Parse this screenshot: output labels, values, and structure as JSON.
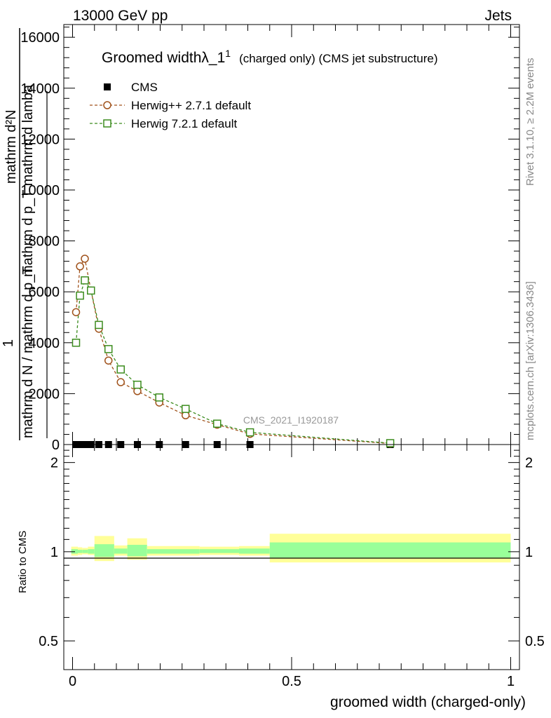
{
  "header": {
    "left": "13000 GeV pp",
    "right": "Jets"
  },
  "side_labels": {
    "top": "Rivet 3.1.10, ≥ 2.2M events",
    "bottom": "mcplots.cern.ch [arXiv:1306.3436]"
  },
  "chart_data": {
    "type": "line",
    "title": "Groomed widthλ_1",
    "title_sup": "1",
    "subtitle": "(charged only) (CMS jet substructure)",
    "watermark": "CMS_2021_I1920187",
    "ylabel_lines": [
      "mathrm d²N",
      "mathrm d p_T mathrm d lamba",
      "1",
      "mathrm d N / mathrm d p_T"
    ],
    "xlabel": "groomed width (charged-only)",
    "ratio_ylabel": "Ratio to CMS",
    "xlim": [
      -0.02,
      1.02
    ],
    "ylim": [
      0,
      16500
    ],
    "ratio_ylim": [
      0.4,
      2.3
    ],
    "yticks": [
      0,
      2000,
      4000,
      6000,
      8000,
      10000,
      12000,
      14000,
      16000
    ],
    "ytick_labels": [
      "0",
      "2000",
      "4000",
      "6000",
      "8000",
      "10000",
      "12000",
      "14000",
      "16000"
    ],
    "xticks": [
      0,
      0.5,
      1
    ],
    "xtick_labels": [
      "0",
      "0.5",
      "1"
    ],
    "ratio_yticks": [
      0.5,
      1,
      2
    ],
    "ratio_ytick_labels": [
      "0.5",
      "1",
      "2"
    ],
    "legend_placement": "top-left",
    "series": [
      {
        "name": "CMS",
        "color": "#000000",
        "marker": "filled-square",
        "x": [
          0.008,
          0.017,
          0.028,
          0.042,
          0.06,
          0.082,
          0.11,
          0.148,
          0.198,
          0.258,
          0.33,
          0.405,
          0.725
        ],
        "y": [
          0,
          0,
          0,
          0,
          0,
          0,
          0,
          0,
          0,
          0,
          0,
          0,
          0
        ]
      },
      {
        "name": "Herwig++ 2.7.1 default",
        "color": "#a0521b",
        "marker": "open-circle",
        "x": [
          0.008,
          0.017,
          0.028,
          0.042,
          0.06,
          0.082,
          0.11,
          0.148,
          0.198,
          0.258,
          0.33,
          0.405,
          0.725
        ],
        "y": [
          5200,
          7000,
          7300,
          6050,
          4550,
          3300,
          2450,
          2100,
          1650,
          1150,
          780,
          420,
          40
        ]
      },
      {
        "name": "Herwig 7.2.1 default",
        "color": "#3c8c1e",
        "marker": "open-square",
        "x": [
          0.008,
          0.017,
          0.028,
          0.042,
          0.06,
          0.082,
          0.11,
          0.148,
          0.198,
          0.258,
          0.33,
          0.405,
          0.725
        ],
        "y": [
          4000,
          5850,
          6450,
          6050,
          4700,
          3750,
          2950,
          2350,
          1850,
          1400,
          820,
          480,
          55
        ]
      }
    ],
    "ratio_bands": [
      {
        "x": [
          -0.003,
          0.012
        ],
        "outer": [
          0.97,
          1.04
        ],
        "inner": [
          0.985,
          1.02
        ]
      },
      {
        "x": [
          0.012,
          0.022
        ],
        "outer": [
          0.975,
          1.035
        ],
        "inner": [
          0.99,
          1.015
        ]
      },
      {
        "x": [
          0.022,
          0.035
        ],
        "outer": [
          0.98,
          1.03
        ],
        "inner": [
          0.99,
          1.015
        ]
      },
      {
        "x": [
          0.035,
          0.05
        ],
        "outer": [
          0.975,
          1.04
        ],
        "inner": [
          0.985,
          1.02
        ]
      },
      {
        "x": [
          0.05,
          0.095
        ],
        "outer": [
          0.93,
          1.13
        ],
        "inner": [
          0.96,
          1.06
        ]
      },
      {
        "x": [
          0.095,
          0.125
        ],
        "outer": [
          0.97,
          1.05
        ],
        "inner": [
          0.985,
          1.025
        ]
      },
      {
        "x": [
          0.125,
          0.17
        ],
        "outer": [
          0.94,
          1.11
        ],
        "inner": [
          0.965,
          1.055
        ]
      },
      {
        "x": [
          0.17,
          0.29
        ],
        "outer": [
          0.97,
          1.045
        ],
        "inner": [
          0.985,
          1.02
        ]
      },
      {
        "x": [
          0.29,
          0.38
        ],
        "outer": [
          0.975,
          1.04
        ],
        "inner": [
          0.99,
          1.02
        ]
      },
      {
        "x": [
          0.38,
          0.45
        ],
        "outer": [
          0.97,
          1.045
        ],
        "inner": [
          0.985,
          1.025
        ]
      },
      {
        "x": [
          0.45,
          1.0
        ],
        "outer": [
          0.92,
          1.15
        ],
        "inner": [
          0.955,
          1.075
        ]
      }
    ],
    "band_colors": {
      "outer": "#ffff99",
      "inner": "#99ff99"
    }
  }
}
